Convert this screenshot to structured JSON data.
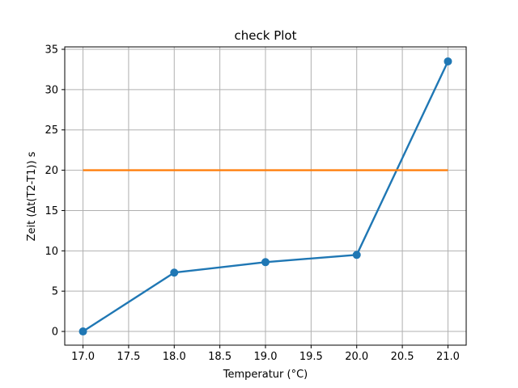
{
  "chart_data": {
    "type": "line",
    "title": "check Plot",
    "xlabel": "Temperatur (°C)",
    "ylabel": "Zeit (Δt(T2-T1)) s",
    "xlim": [
      16.8,
      21.2
    ],
    "ylim": [
      -1.7,
      35.3
    ],
    "xticks": [
      17.0,
      17.5,
      18.0,
      18.5,
      19.0,
      19.5,
      20.0,
      20.5,
      21.0
    ],
    "xtick_labels": [
      "17.0",
      "17.5",
      "18.0",
      "18.5",
      "19.0",
      "19.5",
      "20.0",
      "20.5",
      "21.0"
    ],
    "yticks": [
      0,
      5,
      10,
      15,
      20,
      25,
      30,
      35
    ],
    "ytick_labels": [
      "0",
      "5",
      "10",
      "15",
      "20",
      "25",
      "30",
      "35"
    ],
    "grid": true,
    "series": [
      {
        "x": [
          17,
          18,
          19,
          20,
          21
        ],
        "y": [
          0,
          7.3,
          8.6,
          9.5,
          33.5
        ],
        "color": "#1f77b4",
        "marker": "circle"
      },
      {
        "x": [
          17,
          21
        ],
        "y": [
          20,
          20
        ],
        "color": "#ff7f0e",
        "marker": "none"
      }
    ]
  }
}
